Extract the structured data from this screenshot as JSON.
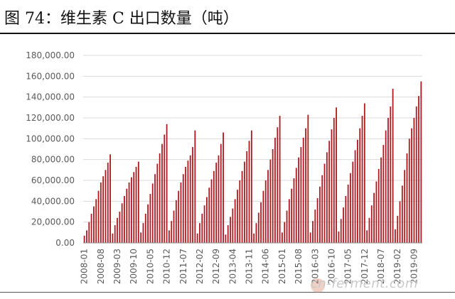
{
  "title": "图 74：维生素 C 出口数量（吨）",
  "watermark": "cn-ferment.com",
  "colors": {
    "bar": "#b01b22",
    "grid": "#d9d9d9",
    "axis": "#8c8c8c",
    "tick_text": "#595959"
  },
  "chart_data": {
    "type": "bar",
    "title": "",
    "xlabel": "",
    "ylabel": "",
    "ylim": [
      0,
      180000
    ],
    "y_ticks": [
      "0.00",
      "20,000.00",
      "40,000.00",
      "60,000.00",
      "80,000.00",
      "100,000.00",
      "120,000.00",
      "140,000.00",
      "160,000.00",
      "180,000.00"
    ],
    "x_ticks": [
      "2008-01",
      "2008-08",
      "2009-03",
      "2009-10",
      "2010-05",
      "2010-12",
      "2011-07",
      "2012-02",
      "2012-09",
      "2013-04",
      "2013-11",
      "2014-06",
      "2015-01",
      "2015-08",
      "2016-03",
      "2016-10",
      "2017-05",
      "2017-12",
      "2018-07",
      "2019-02",
      "2019-09"
    ],
    "grid": true,
    "legend": "none",
    "series": [
      {
        "name": "",
        "values": [
          7000,
          12000,
          20000,
          28000,
          35000,
          42000,
          50000,
          58000,
          64000,
          70000,
          77000,
          85000,
          9000,
          17000,
          24000,
          30000,
          38000,
          45000,
          52000,
          58000,
          63000,
          68000,
          73000,
          78000,
          10000,
          19000,
          28000,
          37000,
          47000,
          57000,
          66000,
          76000,
          86000,
          95000,
          104000,
          114000,
          12000,
          21000,
          31000,
          41000,
          50000,
          58000,
          66000,
          73000,
          79000,
          84000,
          92000,
          108000,
          9000,
          19000,
          28000,
          36000,
          44000,
          53000,
          61000,
          69000,
          77000,
          84000,
          95000,
          106000,
          8000,
          17000,
          25000,
          33000,
          42000,
          51000,
          60000,
          69000,
          78000,
          88000,
          98000,
          108000,
          9000,
          19000,
          29000,
          39000,
          50000,
          60000,
          70000,
          80000,
          90000,
          101000,
          111000,
          122000,
          10000,
          20000,
          31000,
          42000,
          52000,
          62000,
          72000,
          82000,
          92000,
          101000,
          110000,
          123000,
          10000,
          21000,
          32000,
          43000,
          54000,
          65000,
          76000,
          87000,
          98000,
          109000,
          120000,
          130000,
          11000,
          23000,
          34000,
          45000,
          56000,
          67000,
          78000,
          89000,
          99000,
          110000,
          122000,
          134000,
          12000,
          24000,
          36000,
          48000,
          59000,
          71000,
          82000,
          94000,
          108000,
          120000,
          131000,
          148000,
          13000,
          26000,
          40000,
          55000,
          70000,
          86000,
          100000,
          110000,
          120000,
          131000,
          141000,
          155000
        ]
      }
    ]
  }
}
